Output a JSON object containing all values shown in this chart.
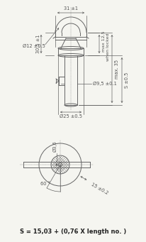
{
  "bg_color": "#f5f5f0",
  "line_color": "#666666",
  "dim_color": "#555555",
  "dim_font": 4.8,
  "formula_font": 6.0,
  "formula": "S = 15,03 + (0,76 X length no. )",
  "dims": {
    "top_width": "31 ±1",
    "left_height": "30,5 ±1",
    "d12": "Ø12 ±0.5",
    "d9_5": "Ø9,5 ±0.1",
    "d25": "Ø25 ±0.5",
    "max125": "max 12,5",
    "when_locked": "when locked",
    "max35": "max. 35",
    "s05": "S ±0.5",
    "d3_6": "Ø3,6",
    "angle": "60 °",
    "r15": "15 ±0.2"
  }
}
